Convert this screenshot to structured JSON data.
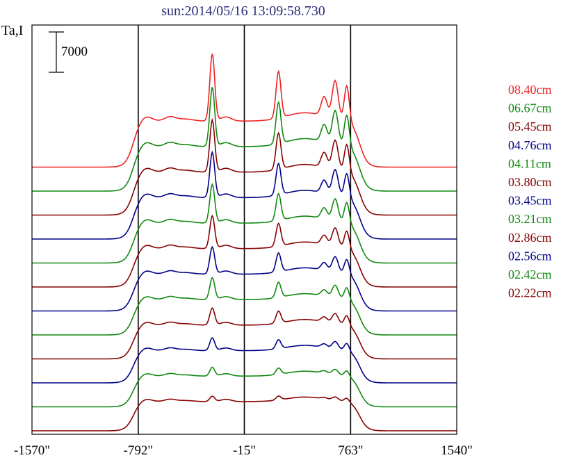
{
  "chart_data": {
    "type": "line",
    "title": "sun:2014/05/16 13:09:58.730",
    "ylabel": "Ta,I",
    "xlabel": "",
    "scale_bar_label": "7000",
    "scale_bar_value": 7000,
    "grid": false,
    "legend_position": "right",
    "x_ticks": [
      "-1570\"",
      "-792\"",
      "-15\"",
      "763\"",
      "1540\""
    ],
    "x_tick_values": [
      -1570,
      -792,
      -15,
      763,
      1540
    ],
    "x_range": [
      -1570,
      1540
    ],
    "vertical_lines_at": [
      -792,
      -15,
      763
    ],
    "series": [
      {
        "name": "08.40cm",
        "color": "#ee2222"
      },
      {
        "name": "06.67cm",
        "color": "#118811"
      },
      {
        "name": "05.45cm",
        "color": "#880000"
      },
      {
        "name": "04.76cm",
        "color": "#000088"
      },
      {
        "name": "04.11cm",
        "color": "#118811"
      },
      {
        "name": "03.80cm",
        "color": "#880000"
      },
      {
        "name": "03.45cm",
        "color": "#000088"
      },
      {
        "name": "03.21cm",
        "color": "#118811"
      },
      {
        "name": "02.86cm",
        "color": "#880000"
      },
      {
        "name": "02.56cm",
        "color": "#000088"
      },
      {
        "name": "02.42cm",
        "color": "#118811"
      },
      {
        "name": "02.22cm",
        "color": "#880000"
      }
    ]
  }
}
